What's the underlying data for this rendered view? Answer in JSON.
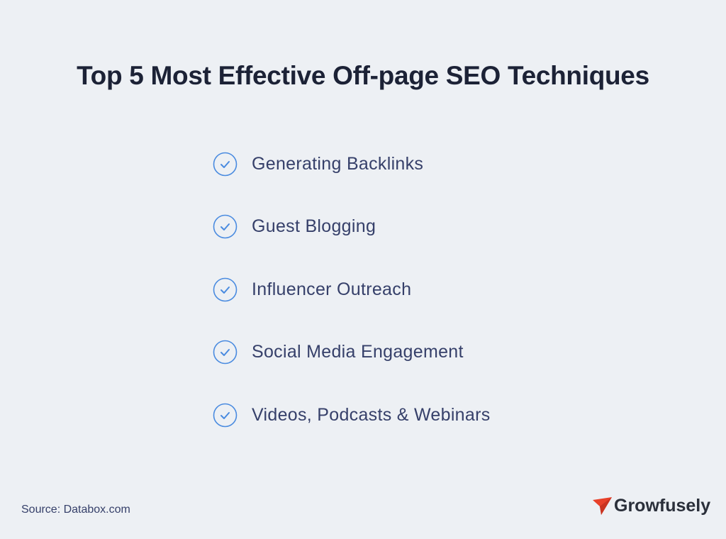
{
  "title": "Top 5 Most Effective Off-page SEO Techniques",
  "items": [
    {
      "label": "Generating Backlinks",
      "icon": "check-circle-icon"
    },
    {
      "label": "Guest Blogging",
      "icon": "check-circle-icon"
    },
    {
      "label": "Influencer Outreach",
      "icon": "check-circle-icon"
    },
    {
      "label": "Social Media Engagement",
      "icon": "check-circle-icon"
    },
    {
      "label": "Videos, Podcasts & Webinars",
      "icon": "check-circle-icon"
    }
  ],
  "source": "Source: Databox.com",
  "brand": {
    "name": "Growfusely",
    "icon": "paper-plane-icon",
    "color": "#e8412a"
  },
  "colors": {
    "background": "#edf0f4",
    "accent": "#4a8be0",
    "title": "#1c2236",
    "text": "#36406a"
  }
}
